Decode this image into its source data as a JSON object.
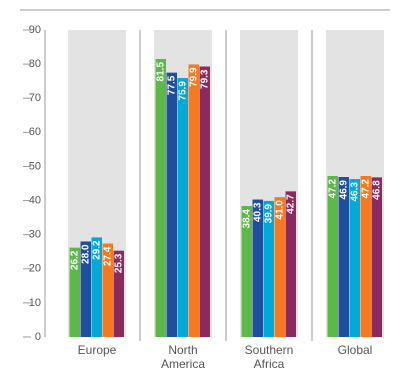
{
  "chart_data": {
    "type": "bar",
    "categories": [
      "Europe",
      "North America",
      "Southern Africa",
      "Global"
    ],
    "series": [
      {
        "color": "#5cb847",
        "values": [
          26.2,
          81.5,
          38.4,
          47.2
        ],
        "value_labels": [
          "26.2",
          "81.5",
          "38.4",
          "47.2"
        ]
      },
      {
        "color": "#1f4e9c",
        "values": [
          28.0,
          77.5,
          40.3,
          46.9
        ],
        "value_labels": [
          "28.0",
          "77.5",
          "40.3",
          "46.9"
        ]
      },
      {
        "color": "#00a9d6",
        "values": [
          29.2,
          75.9,
          39.9,
          46.3
        ],
        "value_labels": [
          "29.2",
          "75.9",
          "39.9",
          "46.3"
        ]
      },
      {
        "color": "#f47920",
        "values": [
          27.4,
          79.9,
          41.0,
          47.2
        ],
        "value_labels": [
          "27.4",
          "79.9",
          "41.0",
          "47.2"
        ]
      },
      {
        "color": "#8b2a5f",
        "values": [
          25.3,
          79.3,
          42.7,
          46.8
        ],
        "value_labels": [
          "25.3",
          "79.3",
          "42.7",
          "46.8"
        ]
      }
    ],
    "ylim": [
      0,
      90
    ],
    "yticks": [
      0,
      10,
      20,
      30,
      40,
      50,
      60,
      70,
      80,
      90
    ],
    "panel_color": "#e3e3e3"
  }
}
